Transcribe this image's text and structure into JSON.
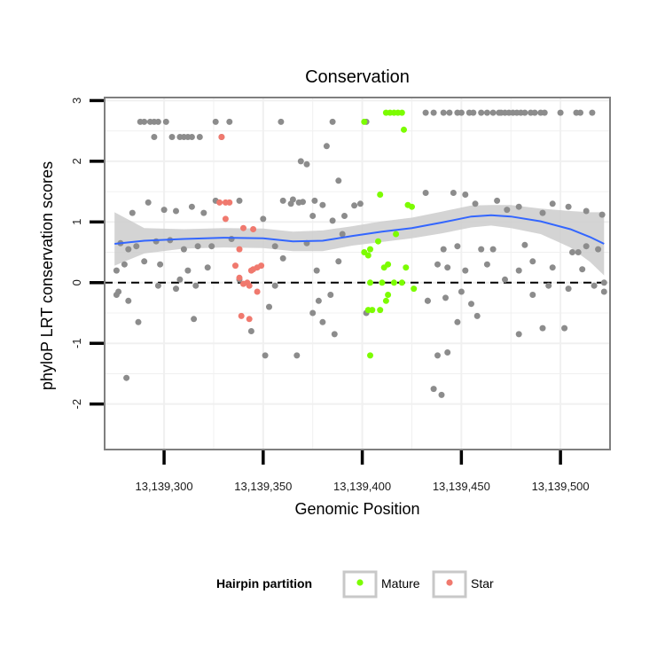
{
  "chart_data": {
    "type": "scatter",
    "title": "Conservation",
    "xlabel": "Genomic Position",
    "ylabel": "phyloP LRT conservation scores",
    "xlim": [
      13139270,
      13139525
    ],
    "ylim": [
      -2.75,
      3.05
    ],
    "x_ticks": [
      {
        "value": 13139300,
        "label": "13,139,300"
      },
      {
        "value": 13139350,
        "label": "13,139,350"
      },
      {
        "value": 13139400,
        "label": "13,139,400"
      },
      {
        "value": 13139450,
        "label": "13,139,450"
      },
      {
        "value": 13139500,
        "label": "13,139,500"
      }
    ],
    "y_ticks": [
      {
        "value": -2,
        "label": "-2"
      },
      {
        "value": -1,
        "label": "-1"
      },
      {
        "value": 0,
        "label": "0"
      },
      {
        "value": 1,
        "label": "1"
      },
      {
        "value": 2,
        "label": "2"
      },
      {
        "value": 3,
        "label": "3"
      }
    ],
    "grid": true,
    "reference_line": {
      "y": 0,
      "style": "dashed",
      "color": "#000000"
    },
    "colors": {
      "Other": "#8c8c8c",
      "Mature": "#7cfc00",
      "Star": "#f0796e",
      "smooth_line": "#3366ff",
      "confidence_band": "#cccccc",
      "panel_background": "#ffffff",
      "grid": "#f0f0f0"
    },
    "legend": {
      "title": "Hairpin partition",
      "placement": "bottom",
      "entries": [
        {
          "label": "Mature",
          "color": "#7cfc00"
        },
        {
          "label": "Star",
          "color": "#f0796e"
        }
      ]
    },
    "smooth": {
      "x": [
        13139275,
        13139290,
        13139310,
        13139330,
        13139350,
        13139365,
        13139380,
        13139395,
        13139410,
        13139425,
        13139440,
        13139455,
        13139465,
        13139475,
        13139490,
        13139505,
        13139515,
        13139522
      ],
      "y": [
        0.64,
        0.69,
        0.72,
        0.74,
        0.73,
        0.68,
        0.69,
        0.77,
        0.84,
        0.9,
        0.99,
        1.09,
        1.11,
        1.09,
        1.01,
        0.88,
        0.75,
        0.64
      ],
      "lower": [
        0.28,
        0.48,
        0.56,
        0.58,
        0.57,
        0.52,
        0.52,
        0.61,
        0.67,
        0.73,
        0.81,
        0.91,
        0.94,
        0.9,
        0.8,
        0.58,
        0.34,
        0.12
      ],
      "upper": [
        1.16,
        0.9,
        0.88,
        0.9,
        0.89,
        0.84,
        0.86,
        0.93,
        1.01,
        1.07,
        1.17,
        1.27,
        1.28,
        1.28,
        1.22,
        1.18,
        1.16,
        1.16
      ]
    },
    "series": [
      {
        "name": "Other",
        "x": [
          13139288,
          13139290,
          13139293,
          13139295,
          13139297,
          13139301,
          13139326,
          13139333,
          13139359,
          13139314,
          13139318,
          13139304,
          13139308,
          13139310,
          13139312,
          13139295,
          13139329,
          13139385,
          13139402,
          13139441,
          13139448,
          13139454,
          13139460,
          13139470,
          13139480,
          13139490,
          13139500,
          13139510,
          13139516,
          13139466,
          13139476,
          13139492,
          13139508,
          13139432,
          13139436,
          13139444,
          13139450,
          13139456,
          13139463,
          13139469,
          13139472,
          13139474,
          13139478,
          13139482,
          13139485,
          13139487,
          13139369,
          13139372,
          13139382,
          13139388,
          13139360,
          13139365,
          13139370,
          13139376,
          13139380,
          13139385,
          13139391,
          13139396,
          13139399,
          13139432,
          13139446,
          13139452,
          13139457,
          13139468,
          13139473,
          13139479,
          13139491,
          13139496,
          13139504,
          13139513,
          13139521,
          13139284,
          13139292,
          13139300,
          13139306,
          13139314,
          13139320,
          13139326,
          13139338,
          13139350,
          13139364,
          13139368,
          13139375,
          13139278,
          13139282,
          13139286,
          13139296,
          13139303,
          13139310,
          13139317,
          13139324,
          13139334,
          13139356,
          13139372,
          13139390,
          13139441,
          13139448,
          13139466,
          13139482,
          13139506,
          13139513,
          13139519,
          13139276,
          13139280,
          13139290,
          13139298,
          13139312,
          13139322,
          13139360,
          13139377,
          13139388,
          13139443,
          13139452,
          13139463,
          13139479,
          13139496,
          13139511,
          13139276,
          13139282,
          13139297,
          13139306,
          13139308,
          13139316,
          13139338,
          13139356,
          13139378,
          13139384,
          13139433,
          13139442,
          13139450,
          13139455,
          13139472,
          13139486,
          13139494,
          13139504,
          13139517,
          13139522,
          13139281,
          13139287,
          13139315,
          13139344,
          13139367,
          13139380,
          13139386,
          13139438,
          13139448,
          13139458,
          13139479,
          13139491,
          13139502,
          13139277,
          13139353,
          13139375,
          13139438,
          13139522,
          13139509,
          13139486,
          13139460,
          13139351,
          13139436,
          13139440,
          13139402,
          13139443,
          13139433
        ],
        "y": [
          2.65,
          2.65,
          2.65,
          2.65,
          2.65,
          2.65,
          2.65,
          2.65,
          2.65,
          2.4,
          2.4,
          2.4,
          2.4,
          2.4,
          2.4,
          2.4,
          2.4,
          2.65,
          2.65,
          2.8,
          2.8,
          2.8,
          2.8,
          2.8,
          2.8,
          2.8,
          2.8,
          2.8,
          2.8,
          2.8,
          2.8,
          2.8,
          2.8,
          2.8,
          2.8,
          2.8,
          2.8,
          2.8,
          2.8,
          2.8,
          2.8,
          2.8,
          2.8,
          2.8,
          2.8,
          2.8,
          2.0,
          1.95,
          2.25,
          1.68,
          1.35,
          1.37,
          1.33,
          1.35,
          1.28,
          1.02,
          1.1,
          1.27,
          1.3,
          1.48,
          1.48,
          1.45,
          1.3,
          1.35,
          1.2,
          1.25,
          1.15,
          1.3,
          1.25,
          1.18,
          1.12,
          1.15,
          1.32,
          1.2,
          1.18,
          1.25,
          1.15,
          1.35,
          1.35,
          1.05,
          1.3,
          1.32,
          1.1,
          0.65,
          0.55,
          0.6,
          0.68,
          0.7,
          0.55,
          0.6,
          0.6,
          0.72,
          0.6,
          0.65,
          0.8,
          0.55,
          0.6,
          0.55,
          0.62,
          0.5,
          0.6,
          0.55,
          0.2,
          0.3,
          0.35,
          0.3,
          0.2,
          0.25,
          0.4,
          0.2,
          0.35,
          0.25,
          0.2,
          0.3,
          0.2,
          0.25,
          0.22,
          -0.2,
          -0.3,
          -0.05,
          -0.1,
          0.05,
          -0.05,
          0.05,
          -0.05,
          -0.3,
          -0.2,
          -0.3,
          -0.25,
          -0.15,
          -0.35,
          0.05,
          -0.2,
          -0.05,
          -0.1,
          -0.05,
          -0.15,
          -1.57,
          -0.65,
          -0.6,
          -0.8,
          -1.2,
          -0.65,
          -0.85,
          -1.2,
          -0.65,
          -0.55,
          -0.85,
          -0.75,
          -0.75,
          -0.15,
          -0.4,
          -0.5,
          0.3,
          0.0,
          0.5,
          0.35,
          0.55,
          -1.2,
          -1.75,
          -1.85,
          -0.5,
          -1.15,
          -0.3
        ],
        "marker": "circle"
      },
      {
        "name": "Mature",
        "x": [
          13139401,
          13139412,
          13139414,
          13139416,
          13139418,
          13139420,
          13139421,
          13139409,
          13139423,
          13139425,
          13139417,
          13139404,
          13139408,
          13139413,
          13139401,
          13139403,
          13139411,
          13139422,
          13139404,
          13139410,
          13139416,
          13139426,
          13139405,
          13139413,
          13139403,
          13139409,
          13139412,
          13139420,
          13139404
        ],
        "y": [
          2.65,
          2.8,
          2.8,
          2.8,
          2.8,
          2.8,
          2.52,
          1.45,
          1.28,
          1.25,
          0.8,
          0.55,
          0.68,
          0.3,
          0.5,
          0.45,
          0.25,
          0.25,
          0.0,
          0.0,
          0.0,
          -0.1,
          -0.45,
          -0.2,
          -0.45,
          -0.45,
          -0.3,
          0.0,
          -1.2
        ],
        "marker": "circle"
      },
      {
        "name": "Star",
        "x": [
          13139329,
          13139328,
          13139331,
          13139333,
          13139331,
          13139338,
          13139345,
          13139336,
          13139340,
          13139344,
          13139347,
          13139349,
          13139338,
          13139342,
          13139345,
          13139340,
          13139343,
          13139347,
          13139339,
          13139343
        ],
        "y": [
          2.4,
          1.32,
          1.32,
          1.32,
          1.05,
          0.55,
          0.88,
          0.28,
          0.9,
          0.2,
          0.25,
          0.28,
          0.08,
          0.0,
          0.22,
          -0.02,
          -0.05,
          -0.15,
          -0.55,
          -0.6
        ],
        "marker": "circle"
      }
    ]
  }
}
